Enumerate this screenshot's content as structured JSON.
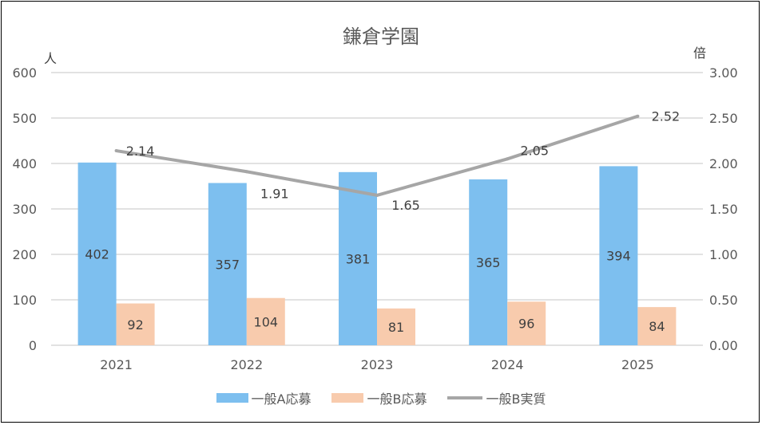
{
  "chart_data": {
    "type": "bar",
    "title": "鎌倉学園",
    "categories": [
      "2021",
      "2022",
      "2023",
      "2024",
      "2025"
    ],
    "series": [
      {
        "name": "一般A応募",
        "type": "bar",
        "axis": "left",
        "color": "#7DBFEF",
        "values": [
          402,
          357,
          381,
          365,
          394
        ],
        "labels": [
          "402",
          "357",
          "381",
          "365",
          "394"
        ]
      },
      {
        "name": "一般B応募",
        "type": "bar",
        "axis": "left",
        "color": "#F8CBAD",
        "values": [
          92,
          104,
          81,
          96,
          84
        ],
        "labels": [
          "92",
          "104",
          "81",
          "96",
          "84"
        ]
      },
      {
        "name": "一般B実質",
        "type": "line",
        "axis": "right",
        "color": "#A6A6A6",
        "values": [
          2.14,
          1.91,
          1.65,
          2.05,
          2.52
        ],
        "labels": [
          "2.14",
          "1.91",
          "1.65",
          "2.05",
          "2.52"
        ]
      }
    ],
    "y_left": {
      "unit": "人",
      "range": [
        0,
        600
      ],
      "ticks": [
        "0",
        "100",
        "200",
        "300",
        "400",
        "500",
        "600"
      ]
    },
    "y_right": {
      "unit": "倍",
      "range": [
        0,
        3
      ],
      "ticks": [
        "0.00",
        "0.50",
        "1.00",
        "1.50",
        "2.00",
        "2.50",
        "3.00"
      ]
    },
    "grid": true,
    "legend_position": "bottom"
  }
}
